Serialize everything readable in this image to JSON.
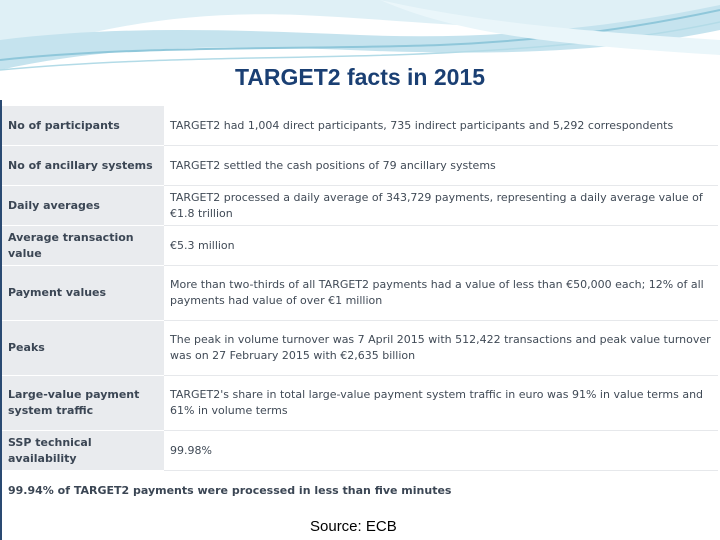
{
  "slide": {
    "title": "TARGET2 facts in 2015",
    "source": "Source: ECB"
  },
  "table": {
    "rows": [
      {
        "label": "No of participants",
        "value": "TARGET2 had 1,004 direct participants, 735 indirect participants and 5,292 correspondents"
      },
      {
        "label": "No of ancillary systems",
        "value": "TARGET2 settled the cash positions of 79 ancillary systems"
      },
      {
        "label": "Daily averages",
        "value": "TARGET2 processed a daily average of 343,729 payments, representing a daily average value of €1.8 trillion"
      },
      {
        "label": "Average transaction value",
        "value": "€5.3 million"
      },
      {
        "label": "Payment values",
        "value": "More than two-thirds of all TARGET2 payments had a value of less than €50,000 each; 12% of all payments had value of over €1 million"
      },
      {
        "label": "Peaks",
        "value": "The peak in volume turnover was 7 April 2015 with 512,422 transactions and peak value turnover was on 27 February 2015 with €2,635 billion"
      },
      {
        "label": "Large-value payment system traffic",
        "value": "TARGET2's share in total large-value payment system traffic in euro was 91% in value terms and 61% in volume terms"
      },
      {
        "label": "SSP technical availability",
        "value": "99.98%"
      }
    ],
    "summary": "99.94% of TARGET2 payments were processed in less than five minutes"
  },
  "colors": {
    "title": "#1a3f73",
    "label_bg": "#e9ebee",
    "swoosh_light": "#cde6f0",
    "swoosh_mid": "#9ccfe0"
  }
}
